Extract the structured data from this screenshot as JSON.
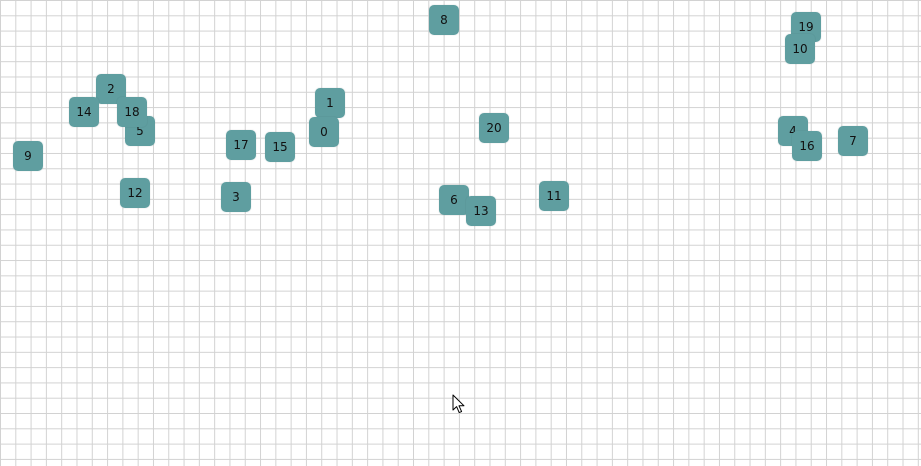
{
  "tiles": [
    {
      "label": "8"
    },
    {
      "label": "19"
    },
    {
      "label": "10"
    },
    {
      "label": "2"
    },
    {
      "label": "14"
    },
    {
      "label": "18"
    },
    {
      "label": "5"
    },
    {
      "label": "1"
    },
    {
      "label": "0"
    },
    {
      "label": "20"
    },
    {
      "label": "4"
    },
    {
      "label": "16"
    },
    {
      "label": "7"
    },
    {
      "label": "17"
    },
    {
      "label": "15"
    },
    {
      "label": "9"
    },
    {
      "label": "12"
    },
    {
      "label": "3"
    },
    {
      "label": "6"
    },
    {
      "label": "13"
    },
    {
      "label": "11"
    }
  ],
  "colors": {
    "tile_fill": "#5f9ea0",
    "grid_line": "#d2d2d2",
    "background": "#ffffff"
  },
  "icons": {
    "pointer": "arrow-cursor-icon"
  }
}
